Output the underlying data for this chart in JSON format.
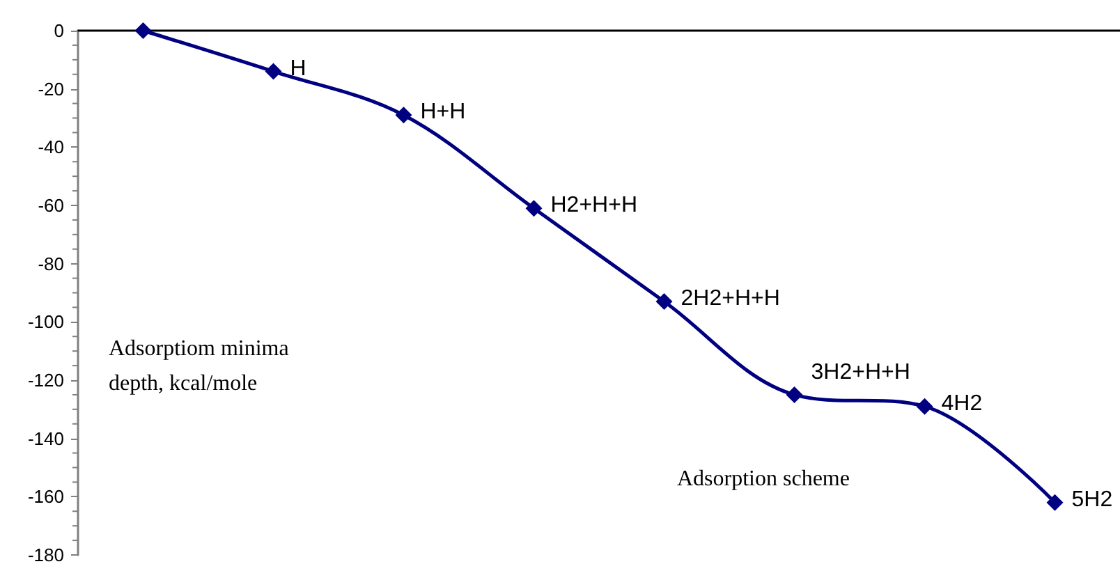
{
  "chart_data": {
    "type": "line",
    "xlabel": "Adsorption scheme",
    "ylabel": "Adsorptiom minima depth, kcal/mole",
    "categories": [
      null,
      null,
      null,
      null,
      null,
      null,
      null,
      null
    ],
    "series": [
      {
        "color": "#000080",
        "values": [
          0,
          -14,
          -29,
          -61,
          -93,
          -125,
          -129,
          -162
        ]
      }
    ],
    "annotations": [
      "H",
      "H+H",
      "H2+H+H",
      "2H2+H+H",
      "3H2+H+H",
      "4H2",
      "5H2"
    ],
    "ylim": [
      -180,
      0
    ],
    "yticks": [
      -180,
      -160,
      -140,
      -120,
      -100,
      -80,
      -60,
      -40,
      -20,
      0
    ],
    "tick_labels": "y",
    "marker": "diamond",
    "line_style": "solid",
    "grid": false
  }
}
